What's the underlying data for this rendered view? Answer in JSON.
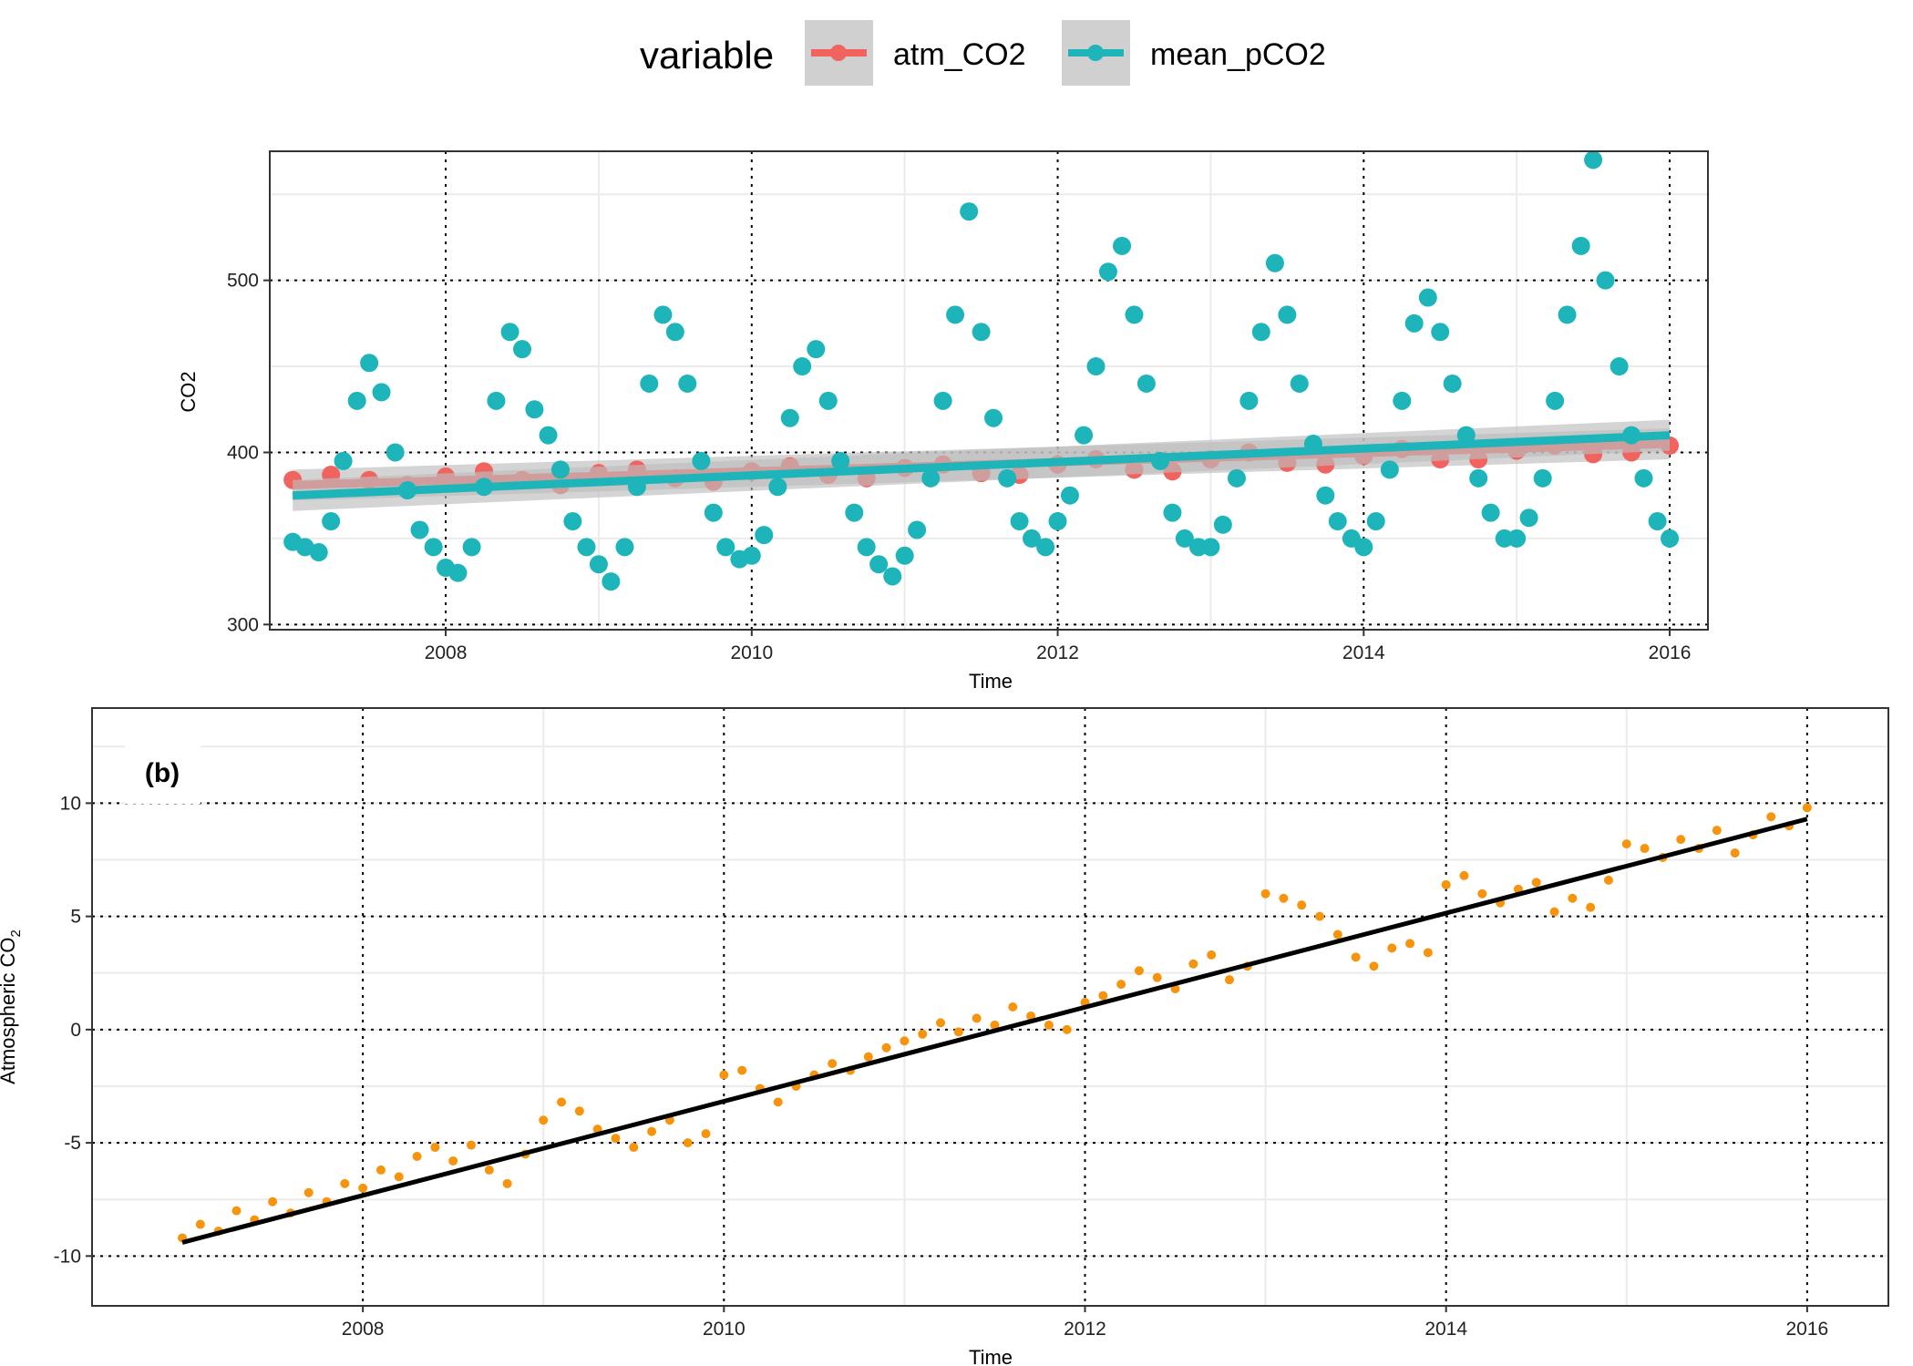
{
  "legend": {
    "title": "variable",
    "items": [
      {
        "label": "atm_CO2",
        "color": "#F0635F"
      },
      {
        "label": "mean_pCO2",
        "color": "#1DB5BA"
      }
    ]
  },
  "chart_data": [
    {
      "type": "scatter",
      "panel": "top",
      "xlabel": "Time",
      "ylabel": "CO2",
      "xlim": [
        2006.85,
        2016.25
      ],
      "ylim": [
        297,
        575
      ],
      "xticks": [
        2008,
        2010,
        2012,
        2014,
        2016
      ],
      "yticks": [
        300,
        400,
        500
      ],
      "grid": true,
      "legend_position": "top",
      "series": [
        {
          "name": "atm_CO2",
          "color": "#F0635F",
          "x": [
            2007.0,
            2007.25,
            2007.5,
            2007.75,
            2008.0,
            2008.25,
            2008.5,
            2008.75,
            2009.0,
            2009.25,
            2009.5,
            2009.75,
            2010.0,
            2010.25,
            2010.5,
            2010.75,
            2011.0,
            2011.25,
            2011.5,
            2011.75,
            2012.0,
            2012.25,
            2012.5,
            2012.75,
            2013.0,
            2013.25,
            2013.5,
            2013.75,
            2014.0,
            2014.25,
            2014.5,
            2014.75,
            2015.0,
            2015.25,
            2015.5,
            2015.75,
            2016.0
          ],
          "y": [
            384,
            387,
            384,
            381,
            386,
            389,
            384,
            381,
            388,
            390,
            385,
            383,
            389,
            392,
            387,
            385,
            391,
            393,
            388,
            387,
            393,
            396,
            390,
            389,
            396,
            400,
            394,
            393,
            398,
            402,
            396,
            396,
            401,
            404,
            399,
            400,
            404
          ],
          "trend": {
            "x": [
              2007.0,
              2016.0
            ],
            "y": [
              381,
              405
            ]
          }
        },
        {
          "name": "mean_pCO2",
          "color": "#1DB5BA",
          "x": [
            2007.0,
            2007.08,
            2007.17,
            2007.25,
            2007.33,
            2007.42,
            2007.5,
            2007.58,
            2007.67,
            2007.75,
            2007.83,
            2007.92,
            2008.0,
            2008.08,
            2008.17,
            2008.25,
            2008.33,
            2008.42,
            2008.5,
            2008.58,
            2008.67,
            2008.75,
            2008.83,
            2008.92,
            2009.0,
            2009.08,
            2009.17,
            2009.25,
            2009.33,
            2009.42,
            2009.5,
            2009.58,
            2009.67,
            2009.75,
            2009.83,
            2009.92,
            2010.0,
            2010.08,
            2010.17,
            2010.25,
            2010.33,
            2010.42,
            2010.5,
            2010.58,
            2010.67,
            2010.75,
            2010.83,
            2010.92,
            2011.0,
            2011.08,
            2011.17,
            2011.25,
            2011.33,
            2011.42,
            2011.5,
            2011.58,
            2011.67,
            2011.75,
            2011.83,
            2011.92,
            2012.0,
            2012.08,
            2012.17,
            2012.25,
            2012.33,
            2012.42,
            2012.5,
            2012.58,
            2012.67,
            2012.75,
            2012.83,
            2012.92,
            2013.0,
            2013.08,
            2013.17,
            2013.25,
            2013.33,
            2013.42,
            2013.5,
            2013.58,
            2013.67,
            2013.75,
            2013.83,
            2013.92,
            2014.0,
            2014.08,
            2014.17,
            2014.25,
            2014.33,
            2014.42,
            2014.5,
            2014.58,
            2014.67,
            2014.75,
            2014.83,
            2014.92,
            2015.0,
            2015.08,
            2015.17,
            2015.25,
            2015.33,
            2015.42,
            2015.5,
            2015.58,
            2015.67,
            2015.75,
            2015.83,
            2015.92,
            2016.0
          ],
          "y": [
            348,
            345,
            342,
            360,
            395,
            430,
            452,
            435,
            400,
            378,
            355,
            345,
            333,
            330,
            345,
            380,
            430,
            470,
            460,
            425,
            410,
            390,
            360,
            345,
            335,
            325,
            345,
            380,
            440,
            480,
            470,
            440,
            395,
            365,
            345,
            338,
            340,
            352,
            380,
            420,
            450,
            460,
            430,
            395,
            365,
            345,
            335,
            328,
            340,
            355,
            385,
            430,
            480,
            540,
            470,
            420,
            385,
            360,
            350,
            345,
            360,
            375,
            410,
            450,
            505,
            520,
            480,
            440,
            395,
            365,
            350,
            345,
            345,
            358,
            385,
            430,
            470,
            510,
            480,
            440,
            405,
            375,
            360,
            350,
            345,
            360,
            390,
            430,
            475,
            490,
            470,
            440,
            410,
            385,
            365,
            350,
            350,
            362,
            385,
            430,
            480,
            520,
            570,
            500,
            450,
            410,
            385,
            360,
            350
          ],
          "trend": {
            "x": [
              2007.0,
              2016.0
            ],
            "y": [
              375,
              410
            ]
          }
        }
      ]
    },
    {
      "type": "scatter",
      "panel": "bottom",
      "annotation": "(b)",
      "xlabel": "Time",
      "ylabel": "Atmospheric CO",
      "ylabel_subscript": "2",
      "xlim": [
        2006.5,
        2016.45
      ],
      "ylim": [
        -12.2,
        14.2
      ],
      "xticks": [
        2008,
        2010,
        2012,
        2014,
        2016
      ],
      "yticks": [
        -10,
        -5,
        0,
        5,
        10
      ],
      "grid": true,
      "series": [
        {
          "name": "",
          "color": "#F7940D",
          "x": [
            2007.0,
            2007.1,
            2007.2,
            2007.3,
            2007.4,
            2007.5,
            2007.6,
            2007.7,
            2007.8,
            2007.9,
            2008.0,
            2008.1,
            2008.2,
            2008.3,
            2008.4,
            2008.5,
            2008.6,
            2008.7,
            2008.8,
            2008.9,
            2009.0,
            2009.1,
            2009.2,
            2009.3,
            2009.4,
            2009.5,
            2009.6,
            2009.7,
            2009.8,
            2009.9,
            2010.0,
            2010.1,
            2010.2,
            2010.3,
            2010.4,
            2010.5,
            2010.6,
            2010.7,
            2010.8,
            2010.9,
            2011.0,
            2011.1,
            2011.2,
            2011.3,
            2011.4,
            2011.5,
            2011.6,
            2011.7,
            2011.8,
            2011.9,
            2012.0,
            2012.1,
            2012.2,
            2012.3,
            2012.4,
            2012.5,
            2012.6,
            2012.7,
            2012.8,
            2012.9,
            2013.0,
            2013.1,
            2013.2,
            2013.3,
            2013.4,
            2013.5,
            2013.6,
            2013.7,
            2013.8,
            2013.9,
            2014.0,
            2014.1,
            2014.2,
            2014.3,
            2014.4,
            2014.5,
            2014.6,
            2014.7,
            2014.8,
            2014.9,
            2015.0,
            2015.1,
            2015.2,
            2015.3,
            2015.4,
            2015.5,
            2015.6,
            2015.7,
            2015.8,
            2015.9,
            2016.0
          ],
          "y": [
            -9.2,
            -8.6,
            -8.9,
            -8.0,
            -8.4,
            -7.6,
            -8.1,
            -7.2,
            -7.6,
            -6.8,
            -7.0,
            -6.2,
            -6.5,
            -5.6,
            -5.2,
            -5.8,
            -5.1,
            -6.2,
            -6.8,
            -5.5,
            -4.0,
            -3.2,
            -3.6,
            -4.4,
            -4.8,
            -5.2,
            -4.5,
            -4.0,
            -5.0,
            -4.6,
            -2.0,
            -1.8,
            -2.6,
            -3.2,
            -2.5,
            -2.0,
            -1.5,
            -1.8,
            -1.2,
            -0.8,
            -0.5,
            -0.2,
            0.3,
            -0.1,
            0.5,
            0.2,
            1.0,
            0.6,
            0.2,
            0.0,
            1.2,
            1.5,
            2.0,
            2.6,
            2.3,
            1.8,
            2.9,
            3.3,
            2.2,
            2.8,
            6.0,
            5.8,
            5.5,
            5.0,
            4.2,
            3.2,
            2.8,
            3.6,
            3.8,
            3.4,
            6.4,
            6.8,
            6.0,
            5.6,
            6.2,
            6.5,
            5.2,
            5.8,
            5.4,
            6.6,
            8.2,
            8.0,
            7.6,
            8.4,
            8.0,
            8.8,
            7.8,
            8.6,
            9.4,
            9.0,
            9.8
          ],
          "trend": {
            "x": [
              2007.0,
              2016.0
            ],
            "y": [
              -9.4,
              9.3
            ]
          }
        }
      ]
    }
  ]
}
